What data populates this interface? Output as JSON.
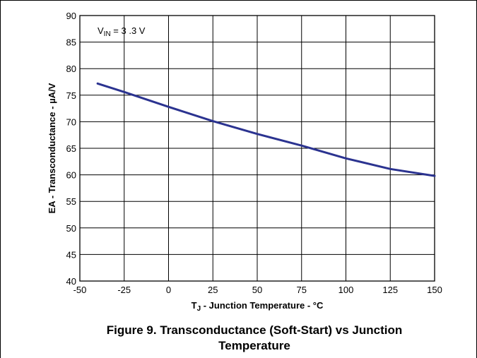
{
  "chart_data": {
    "type": "line",
    "xlabel_symbol": "T",
    "xlabel_sub": "J",
    "xlabel_rest": " - Junction Temperature - °C",
    "ylabel": "EA - Transconductance - µA/V",
    "xlim": [
      -50,
      150
    ],
    "ylim": [
      40,
      90
    ],
    "x_ticks": [
      -50,
      -25,
      0,
      25,
      50,
      75,
      100,
      125,
      150
    ],
    "y_ticks": [
      40,
      45,
      50,
      55,
      60,
      65,
      70,
      75,
      80,
      85,
      90
    ],
    "grid": true,
    "annotation_main": "V",
    "annotation_sub": "IN",
    "annotation_rest": " = 3 .3 V",
    "series": [
      {
        "color": "#2b3390",
        "x": [
          -40,
          -25,
          0,
          25,
          50,
          75,
          100,
          125,
          150
        ],
        "y": [
          77.2,
          75.6,
          72.8,
          70.1,
          67.7,
          65.5,
          63.1,
          61.1,
          59.8
        ]
      }
    ]
  },
  "caption": {
    "line1": "Figure 9. Transconductance (Soft-Start) vs Junction",
    "line2": "Temperature"
  }
}
